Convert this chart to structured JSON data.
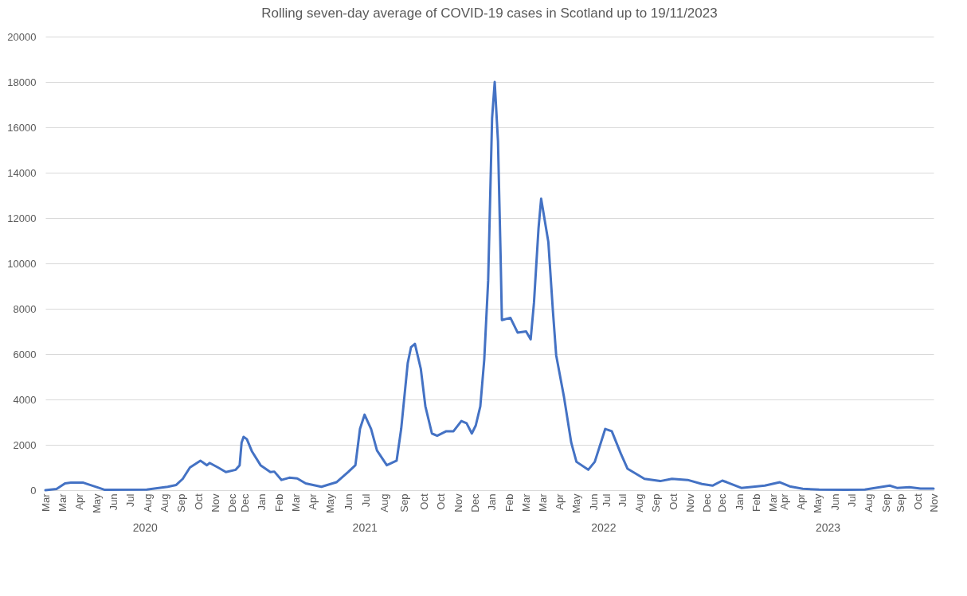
{
  "chart_data": {
    "type": "line",
    "title": "Rolling seven-day average of COVID-19 cases in Scotland up to 19/11/2023",
    "x": [
      "2020-03-01",
      "2020-03-18",
      "2020-03-31",
      "2020-04-09",
      "2020-04-28",
      "2020-05-22",
      "2020-05-30",
      "2020-08-03",
      "2020-09-04",
      "2020-09-17",
      "2020-09-27",
      "2020-10-08",
      "2020-10-24",
      "2020-11-03",
      "2020-11-07",
      "2020-11-20",
      "2020-12-02",
      "2020-12-17",
      "2020-12-23",
      "2020-12-26",
      "2020-12-29",
      "2021-01-03",
      "2021-01-11",
      "2021-01-24",
      "2021-02-08",
      "2021-02-14",
      "2021-02-25",
      "2021-03-09",
      "2021-03-21",
      "2021-04-03",
      "2021-04-27",
      "2021-05-20",
      "2021-06-07",
      "2021-06-18",
      "2021-06-25",
      "2021-07-02",
      "2021-07-12",
      "2021-07-21",
      "2021-08-05",
      "2021-08-20",
      "2021-08-27",
      "2021-09-06",
      "2021-09-11",
      "2021-09-17",
      "2021-09-26",
      "2021-10-03",
      "2021-10-13",
      "2021-10-21",
      "2021-11-04",
      "2021-11-15",
      "2021-11-27",
      "2021-12-05",
      "2021-12-13",
      "2021-12-19",
      "2021-12-26",
      "2022-01-01",
      "2022-01-07",
      "2022-01-13",
      "2022-01-17",
      "2022-01-22",
      "2022-01-26",
      "2022-01-28",
      "2022-02-10",
      "2022-02-21",
      "2022-03-06",
      "2022-03-13",
      "2022-03-18",
      "2022-03-25",
      "2022-03-29",
      "2022-04-09",
      "2022-04-16",
      "2022-04-21",
      "2022-05-03",
      "2022-05-14",
      "2022-05-22",
      "2022-06-09",
      "2022-06-19",
      "2022-07-05",
      "2022-07-15",
      "2022-07-29",
      "2022-08-08",
      "2022-09-03",
      "2022-09-27",
      "2022-10-15",
      "2022-11-08",
      "2022-11-30",
      "2022-12-16",
      "2022-12-31",
      "2023-01-07",
      "2023-01-29",
      "2023-03-06",
      "2023-03-29",
      "2023-04-13",
      "2023-05-03",
      "2023-05-28",
      "2023-07-08",
      "2023-08-06",
      "2023-09-13",
      "2023-09-24",
      "2023-10-13",
      "2023-10-30",
      "2023-11-19"
    ],
    "series": [
      {
        "color": "#4472c4",
        "values": [
          0,
          50,
          300,
          330,
          330,
          100,
          20,
          30,
          150,
          230,
          500,
          1000,
          1300,
          1100,
          1200,
          1000,
          800,
          900,
          1100,
          2100,
          2350,
          2250,
          1700,
          1100,
          800,
          820,
          450,
          550,
          520,
          300,
          150,
          350,
          800,
          1100,
          2700,
          3330,
          2700,
          1750,
          1100,
          1300,
          2700,
          5600,
          6300,
          6450,
          5350,
          3700,
          2500,
          2400,
          2600,
          2600,
          3050,
          2950,
          2500,
          2850,
          3700,
          5750,
          9250,
          16400,
          18000,
          15400,
          10350,
          7500,
          7600,
          6950,
          7000,
          6650,
          8250,
          11550,
          12850,
          10950,
          7900,
          5950,
          4100,
          2100,
          1250,
          900,
          1250,
          2700,
          2600,
          1600,
          950,
          500,
          400,
          500,
          450,
          270,
          200,
          420,
          350,
          100,
          200,
          350,
          170,
          60,
          30,
          20,
          30,
          200,
          100,
          130,
          70,
          70
        ]
      }
    ],
    "xlim": [
      "2020-03-01",
      "2023-11-19"
    ],
    "xticks": [
      {
        "value": "2020-03-01",
        "label": "Mar"
      },
      {
        "value": "2020-03-27",
        "label": "Mar"
      },
      {
        "value": "2020-04-22",
        "label": "Apr"
      },
      {
        "value": "2020-05-18",
        "label": "May"
      },
      {
        "value": "2020-06-13",
        "label": "Jun"
      },
      {
        "value": "2020-07-09",
        "label": "Jul"
      },
      {
        "value": "2020-08-04",
        "label": "Aug"
      },
      {
        "value": "2020-08-30",
        "label": "Aug"
      },
      {
        "value": "2020-09-25",
        "label": "Sep"
      },
      {
        "value": "2020-10-21",
        "label": "Oct"
      },
      {
        "value": "2020-11-16",
        "label": "Nov"
      },
      {
        "value": "2020-12-12",
        "label": "Dec"
      },
      {
        "value": "2020-12-31",
        "label": "Dec"
      },
      {
        "value": "2021-01-26",
        "label": "Jan"
      },
      {
        "value": "2021-02-21",
        "label": "Feb"
      },
      {
        "value": "2021-03-19",
        "label": "Mar"
      },
      {
        "value": "2021-04-14",
        "label": "Apr"
      },
      {
        "value": "2021-05-10",
        "label": "May"
      },
      {
        "value": "2021-06-08",
        "label": "Jun"
      },
      {
        "value": "2021-07-04",
        "label": "Jul"
      },
      {
        "value": "2021-08-01",
        "label": "Aug"
      },
      {
        "value": "2021-09-01",
        "label": "Sep"
      },
      {
        "value": "2021-10-01",
        "label": "Oct"
      },
      {
        "value": "2021-10-27",
        "label": "Oct"
      },
      {
        "value": "2021-11-22",
        "label": "Nov"
      },
      {
        "value": "2021-12-18",
        "label": "Dec"
      },
      {
        "value": "2022-01-13",
        "label": "Jan"
      },
      {
        "value": "2022-02-08",
        "label": "Feb"
      },
      {
        "value": "2022-03-06",
        "label": "Mar"
      },
      {
        "value": "2022-03-31",
        "label": "Mar"
      },
      {
        "value": "2022-04-26",
        "label": "Apr"
      },
      {
        "value": "2022-05-22",
        "label": "May"
      },
      {
        "value": "2022-06-17",
        "label": "Jun"
      },
      {
        "value": "2022-07-07",
        "label": "Jul"
      },
      {
        "value": "2022-07-31",
        "label": "Jul"
      },
      {
        "value": "2022-08-26",
        "label": "Aug"
      },
      {
        "value": "2022-09-21",
        "label": "Sep"
      },
      {
        "value": "2022-10-17",
        "label": "Oct"
      },
      {
        "value": "2022-11-12",
        "label": "Nov"
      },
      {
        "value": "2022-12-08",
        "label": "Dec"
      },
      {
        "value": "2022-12-31",
        "label": "Dec"
      },
      {
        "value": "2023-01-26",
        "label": "Jan"
      },
      {
        "value": "2023-02-21",
        "label": "Feb"
      },
      {
        "value": "2023-03-19",
        "label": "Mar"
      },
      {
        "value": "2023-04-05",
        "label": "Apr"
      },
      {
        "value": "2023-04-30",
        "label": "Apr"
      },
      {
        "value": "2023-05-26",
        "label": "May"
      },
      {
        "value": "2023-06-21",
        "label": "Jun"
      },
      {
        "value": "2023-07-17",
        "label": "Jul"
      },
      {
        "value": "2023-08-12",
        "label": "Aug"
      },
      {
        "value": "2023-09-07",
        "label": "Sep"
      },
      {
        "value": "2023-09-30",
        "label": "Sep"
      },
      {
        "value": "2023-10-26",
        "label": "Oct"
      },
      {
        "value": "2023-11-19",
        "label": "Nov"
      }
    ],
    "x2lim": [
      "2020-03-01",
      "2023-11-19"
    ],
    "x2ticks": [
      {
        "value": "2020-07-31",
        "label": "2020"
      },
      {
        "value": "2021-07-02",
        "label": "2021"
      },
      {
        "value": "2022-07-02",
        "label": "2022"
      },
      {
        "value": "2023-06-10",
        "label": "2023"
      }
    ],
    "ylim": [
      0,
      20000
    ],
    "yticks": [
      0,
      2000,
      4000,
      6000,
      8000,
      10000,
      12000,
      14000,
      16000,
      18000,
      20000
    ],
    "grid": "y"
  }
}
